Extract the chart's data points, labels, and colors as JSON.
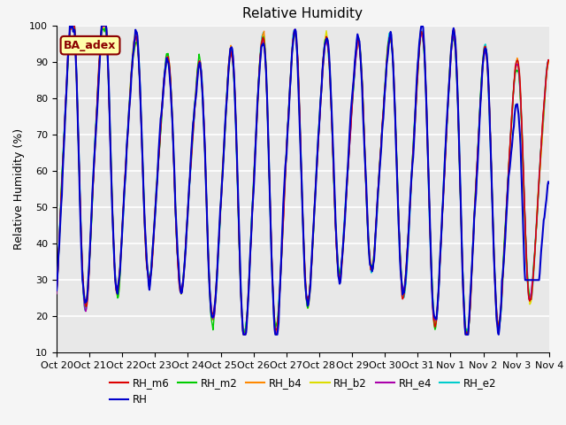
{
  "title": "Relative Humidity",
  "ylabel": "Relative Humidity (%)",
  "ylim": [
    10,
    100
  ],
  "yticks": [
    10,
    20,
    30,
    40,
    50,
    60,
    70,
    80,
    90,
    100
  ],
  "xtick_labels": [
    "Oct 20",
    "Oct 21",
    "Oct 22",
    "Oct 23",
    "Oct 24",
    "Oct 25",
    "Oct 26",
    "Oct 27",
    "Oct 28",
    "Oct 29",
    "Oct 30",
    "Oct 31",
    "Nov 1",
    "Nov 2",
    "Nov 3",
    "Nov 4"
  ],
  "series_colors": {
    "RH_m6": "#dd0000",
    "RH": "#0000cc",
    "RH_m2": "#00cc00",
    "RH_b4": "#ff8800",
    "RH_b2": "#dddd00",
    "RH_e4": "#aa00aa",
    "RH_e2": "#00cccc"
  },
  "annotation_text": "BA_adex",
  "background_color": "#f5f5f5",
  "plot_bg_color": "#e8e8e8",
  "grid_color": "#ffffff",
  "n_days": 15.5,
  "title_fontsize": 11,
  "axis_fontsize": 9,
  "tick_fontsize": 8
}
